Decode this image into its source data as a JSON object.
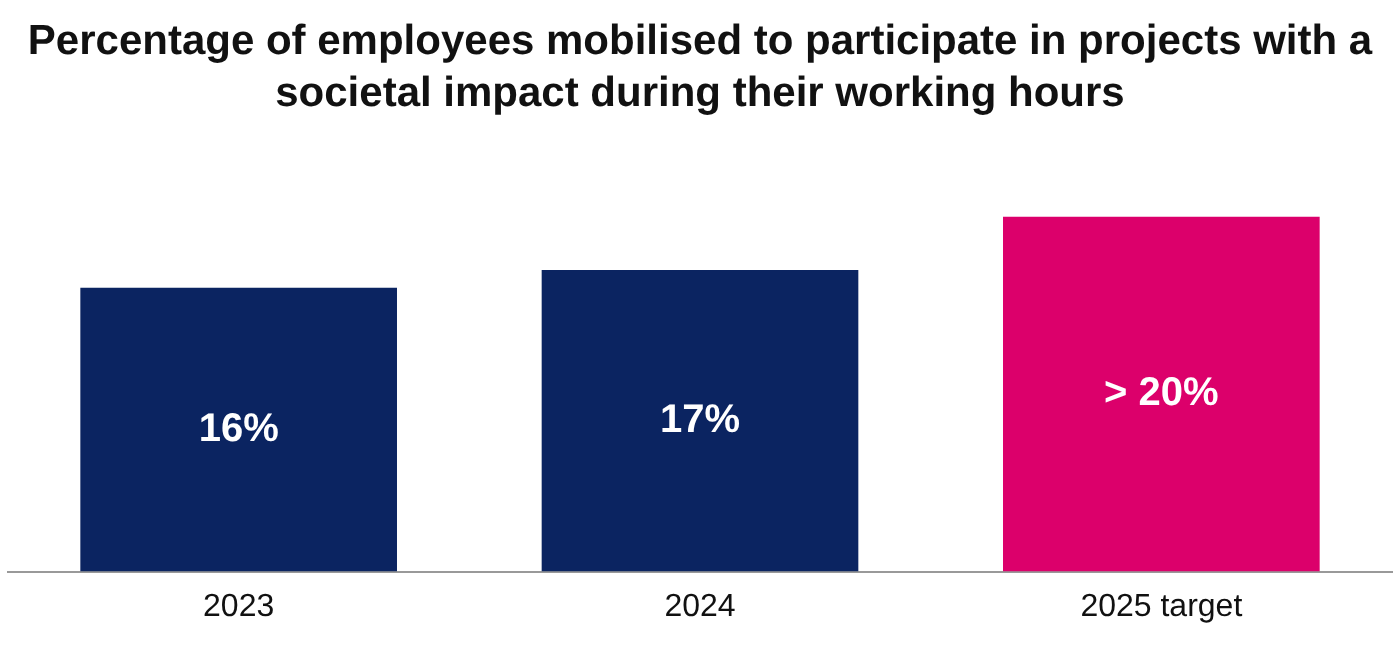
{
  "chart_data": {
    "type": "bar",
    "title": "Percentage of employees mobilised to participate in projects with a societal impact during their working hours",
    "categories": [
      "2023",
      "2024",
      "2025 target"
    ],
    "values": [
      16,
      17,
      20
    ],
    "colors": [
      "#0b2461",
      "#0b2461",
      "#dc006b"
    ],
    "value_labels": [
      "16%",
      "17%",
      "> 20%"
    ],
    "grid": false,
    "legend": false
  }
}
